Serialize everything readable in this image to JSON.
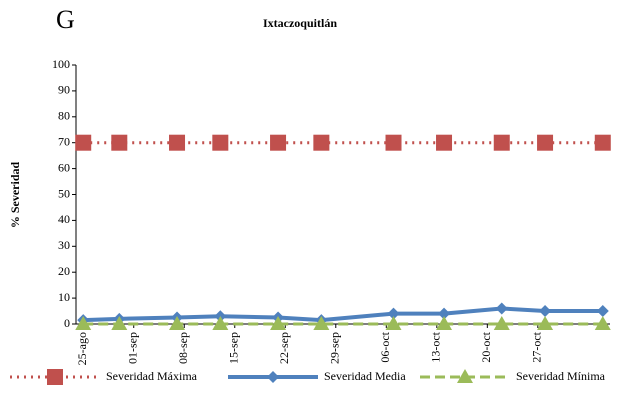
{
  "chart_data": {
    "type": "line",
    "panel_label": "G",
    "title": "Ixtaczoquitlán",
    "y_label": "% Severidad",
    "x": [
      0,
      5,
      13,
      19,
      27,
      33,
      43,
      50,
      58,
      64,
      72
    ],
    "xlim": [
      -1,
      73
    ],
    "xticks": [
      {
        "value": 0,
        "label": "25-ago"
      },
      {
        "value": 7,
        "label": "01-sep"
      },
      {
        "value": 14,
        "label": "08-sep"
      },
      {
        "value": 21,
        "label": "15-sep"
      },
      {
        "value": 28,
        "label": "22-sep"
      },
      {
        "value": 35,
        "label": "29-sep"
      },
      {
        "value": 42,
        "label": "06-oct"
      },
      {
        "value": 49,
        "label": "13-oct"
      },
      {
        "value": 56,
        "label": "20-oct"
      },
      {
        "value": 63,
        "label": "27-oct"
      }
    ],
    "ylim": [
      0,
      100
    ],
    "yticks": [
      0,
      10,
      20,
      30,
      40,
      50,
      60,
      70,
      80,
      90,
      100
    ],
    "grid": false,
    "legend": "bottom",
    "series": [
      {
        "name": "Severidad Máxima",
        "color": "#c0504d",
        "style": "dotted",
        "marker": "square",
        "values": [
          70,
          70,
          70,
          70,
          70,
          70,
          70,
          70,
          70,
          70,
          70
        ]
      },
      {
        "name": "Severidad Media",
        "color": "#4f81bd",
        "style": "solid",
        "marker": "diamond",
        "values": [
          1.5,
          2,
          2.5,
          3,
          2.5,
          1.5,
          4,
          4,
          6,
          5,
          5
        ]
      },
      {
        "name": "Severidad Mínima",
        "color": "#9bbb59",
        "style": "dashed",
        "marker": "triangle",
        "values": [
          0,
          0,
          0,
          0,
          0,
          0,
          0,
          0,
          0,
          0,
          0
        ]
      }
    ]
  }
}
